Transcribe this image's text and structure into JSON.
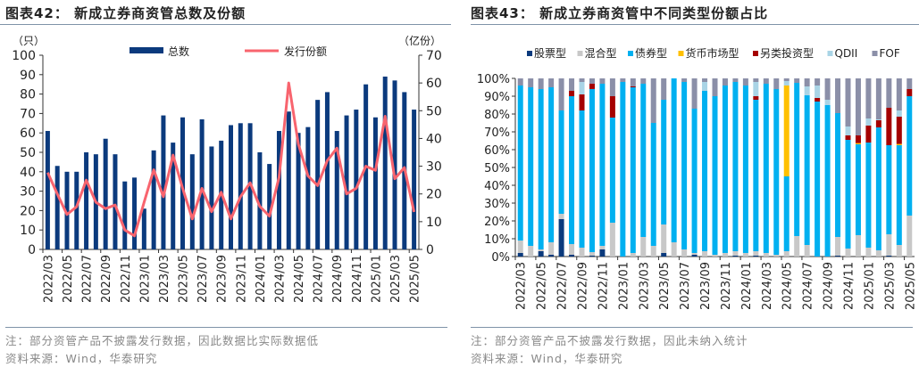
{
  "left": {
    "title": "图表42： 新成立券商资管总数及份额",
    "note": "注：部分资管产品不披露发行数据，因此数据比实际数据低",
    "source": "资料来源：Wind，华泰研究"
  },
  "right": {
    "title": "图表43： 新成立券商资管中不同类型份额占比",
    "note": "注：部分资管产品不披露发行数据，因此未纳入统计",
    "source": "资料来源：Wind，华泰研究"
  },
  "chart_data": [
    {
      "type": "bar+line",
      "left_unit": "（只）",
      "right_unit": "（亿份）",
      "ylim_left": [
        0,
        100
      ],
      "ylim_right": [
        0,
        70
      ],
      "yticks_left": [
        0,
        10,
        20,
        30,
        40,
        50,
        60,
        70,
        80,
        90,
        100
      ],
      "yticks_right": [
        0,
        10,
        20,
        30,
        40,
        50,
        60,
        70
      ],
      "legend_placement": "top",
      "grid": false,
      "categories": [
        "2022/03",
        "2022/04",
        "2022/05",
        "2022/06",
        "2022/07",
        "2022/08",
        "2022/09",
        "2022/10",
        "2022/11",
        "2022/12",
        "2023/01",
        "2023/02",
        "2023/03",
        "2023/04",
        "2023/05",
        "2023/06",
        "2023/07",
        "2023/08",
        "2023/09",
        "2023/10",
        "2023/11",
        "2023/12",
        "2024/01",
        "2024/02",
        "2024/03",
        "2024/04",
        "2024/05",
        "2024/06",
        "2024/07",
        "2024/08",
        "2024/09",
        "2024/10",
        "2024/11",
        "2024/12",
        "2025/01",
        "2025/02",
        "2025/03",
        "2025/04",
        "2025/05"
      ],
      "series": [
        {
          "name": "总数",
          "type": "bar",
          "axis": "left",
          "color": "#0b3a7d",
          "values": [
            61,
            43,
            40,
            40,
            50,
            49,
            57,
            49,
            35,
            37,
            21,
            51,
            69,
            55,
            68,
            49,
            67,
            53,
            56,
            64,
            65,
            65,
            50,
            44,
            61,
            71,
            60,
            63,
            77,
            81,
            61,
            69,
            72,
            85,
            68,
            89,
            87,
            81,
            72
          ]
        },
        {
          "name": "发行份额",
          "type": "line",
          "axis": "right",
          "color": "#f8646e",
          "values": [
            27.7,
            20,
            12.6,
            15.4,
            25,
            17,
            14.7,
            16,
            7,
            4.9,
            17,
            28.7,
            19,
            34,
            22,
            11,
            22,
            13.6,
            20.6,
            11,
            19,
            24,
            15.5,
            12,
            26,
            60,
            38,
            26.5,
            23,
            32,
            36.5,
            20,
            22,
            30,
            28.5,
            48,
            25.5,
            29.5,
            13.5
          ]
        }
      ]
    },
    {
      "type": "stacked-bar-100",
      "ylim": [
        0,
        100
      ],
      "yticks": [
        "0%",
        "10%",
        "20%",
        "30%",
        "40%",
        "50%",
        "60%",
        "70%",
        "80%",
        "90%",
        "100%"
      ],
      "legend_placement": "top",
      "grid": false,
      "categories": [
        "2022/03",
        "2022/04",
        "2022/05",
        "2022/06",
        "2022/07",
        "2022/08",
        "2022/09",
        "2022/10",
        "2022/11",
        "2022/12",
        "2023/01",
        "2023/02",
        "2023/03",
        "2023/04",
        "2023/05",
        "2023/06",
        "2023/07",
        "2023/08",
        "2023/09",
        "2023/10",
        "2023/11",
        "2023/12",
        "2024/01",
        "2024/02",
        "2024/03",
        "2024/04",
        "2024/05",
        "2024/06",
        "2024/07",
        "2024/08",
        "2024/09",
        "2024/10",
        "2024/11",
        "2024/12",
        "2025/01",
        "2025/02",
        "2025/03",
        "2025/04",
        "2025/05"
      ],
      "series": [
        {
          "name": "股票型",
          "color": "#0b3a7d",
          "values": [
            2,
            0,
            3,
            1,
            21,
            1,
            0,
            0.5,
            4,
            0,
            0,
            0,
            0,
            0,
            2,
            0,
            0,
            1,
            0,
            0,
            0,
            0.5,
            0,
            0.5,
            0,
            0,
            0,
            0,
            0,
            0,
            0,
            0.5,
            0,
            0,
            0,
            0,
            0.5,
            0,
            0
          ]
        },
        {
          "name": "混合型",
          "color": "#c8c8c8",
          "values": [
            7,
            6,
            1,
            7,
            3,
            6,
            5,
            2,
            2,
            19,
            0,
            2,
            11,
            6,
            16,
            8,
            4,
            1,
            3,
            1,
            2,
            2.5,
            2,
            2.5,
            2,
            1,
            3,
            11.5,
            6.5,
            0,
            0,
            10.5,
            4.5,
            12,
            5,
            3.5,
            12,
            6.5,
            23
          ]
        },
        {
          "name": "债券型",
          "color": "#00b0f0",
          "values": [
            87,
            89,
            90,
            87,
            58,
            83,
            77,
            92,
            91,
            59,
            98,
            93,
            86,
            69,
            70,
            92,
            94,
            81,
            90,
            89,
            94,
            95,
            94,
            85,
            95,
            93,
            42,
            86,
            84,
            87,
            85,
            69.5,
            61,
            51,
            59,
            69,
            50,
            56,
            67
          ]
        },
        {
          "name": "货币市场型",
          "color": "#ffc000",
          "values": [
            0,
            0,
            0,
            0,
            0,
            0,
            0,
            0,
            0,
            0,
            0,
            0,
            0,
            0,
            0,
            0,
            0,
            0,
            0,
            0,
            0,
            0,
            0,
            0,
            0,
            0,
            51,
            0,
            0,
            0,
            0,
            0,
            0,
            0.7,
            0,
            0,
            0,
            0.7,
            0
          ]
        },
        {
          "name": "另类投资型",
          "color": "#a50000",
          "values": [
            0,
            0,
            0,
            0,
            0,
            3,
            9,
            3,
            0,
            12,
            0,
            0.5,
            0,
            0,
            0,
            0,
            0,
            0,
            0,
            0,
            0,
            0,
            0,
            2,
            0,
            0,
            0,
            0,
            0,
            2,
            0,
            0,
            2.5,
            4.3,
            9.5,
            4,
            21,
            15.3,
            4
          ]
        },
        {
          "name": "QDII",
          "color": "#a9d4e6",
          "values": [
            0,
            0,
            0,
            0,
            0,
            0,
            7,
            0,
            0,
            0,
            0,
            0,
            0,
            0,
            0,
            0,
            0,
            0,
            5,
            0,
            0,
            0,
            0,
            8,
            0,
            0,
            2.5,
            0,
            5,
            7,
            3,
            0,
            5,
            0,
            4,
            0.5,
            0,
            3.5,
            0
          ]
        },
        {
          "name": "FOF",
          "color": "#8b8fa8",
          "values": [
            4,
            5,
            6,
            5,
            18,
            7,
            2,
            3,
            3,
            10,
            2,
            4.5,
            3,
            25,
            12,
            0,
            2,
            17,
            2,
            10,
            4,
            2,
            4,
            2,
            3,
            6,
            1.5,
            2.5,
            4.5,
            4,
            12,
            19.5,
            27,
            32,
            22.5,
            23,
            16.5,
            18,
            6
          ]
        }
      ]
    }
  ]
}
